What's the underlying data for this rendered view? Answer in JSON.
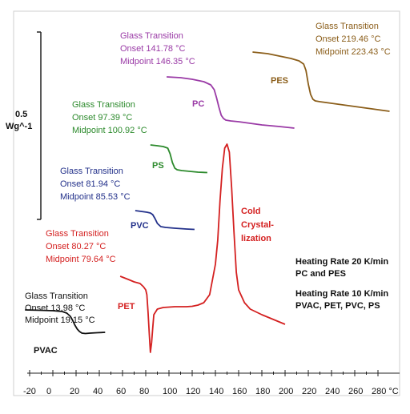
{
  "chart_data": {
    "type": "line",
    "title": "",
    "xlabel": "°C",
    "ylabel": "",
    "xlim": [
      -25,
      300
    ],
    "x_ticks": [
      "-20",
      "0",
      "20",
      "40",
      "60",
      "80",
      "100",
      "120",
      "140",
      "160",
      "180",
      "200",
      "220",
      "240",
      "260",
      "280 °C"
    ],
    "scale_bar": {
      "value": "0.5",
      "unit": "Wg^-1"
    },
    "series": [
      {
        "name": "PVAC",
        "color": "#111111",
        "x": [
          -24,
          -10,
          0,
          8,
          12,
          15,
          17,
          19,
          21,
          23,
          25,
          28,
          32,
          38,
          45
        ],
        "y": [
          387,
          387.5,
          388,
          389,
          391,
          395,
          400,
          406,
          411,
          414,
          416,
          416.5,
          416,
          415.5,
          415
        ],
        "annotation": {
          "title": "Glass Transition",
          "onset": "Onset   13.98 °C",
          "midpoint": "Midpoint 19.15 °C"
        }
      },
      {
        "name": "PET",
        "color": "#d42020",
        "x": [
          58,
          65,
          70,
          75,
          78,
          80,
          81,
          82,
          83,
          84,
          85,
          86,
          87,
          90,
          95,
          100,
          105,
          110,
          115,
          120,
          125,
          130,
          135,
          140,
          142,
          144,
          146,
          148,
          150,
          152,
          154,
          156,
          158,
          160,
          165,
          170,
          180,
          190,
          200
        ],
        "y": [
          345,
          349,
          352,
          354,
          358,
          362,
          368,
          390,
          415,
          440,
          428,
          410,
          393,
          386,
          384,
          383.5,
          383,
          383,
          383,
          382.5,
          381,
          378,
          368,
          330,
          300,
          250,
          210,
          185,
          180,
          190,
          235,
          290,
          340,
          362,
          378,
          386,
          393,
          399,
          405
        ],
        "annotation": {
          "title": "Glass Transition",
          "onset": "Onset   80.27 °C",
          "midpoint": "Midpoint 79.64 °C"
        }
      },
      {
        "name": "PVC",
        "color": "#22308a",
        "x": [
          71,
          76,
          81,
          84,
          86,
          88,
          90,
          93,
          97,
          105,
          115,
          122
        ],
        "y": [
          263,
          264,
          265,
          266,
          268,
          273,
          279,
          283,
          284,
          285,
          286,
          286.5
        ],
        "annotation": {
          "title": "Glass Transition",
          "onset": "Onset   81.94 °C",
          "midpoint": "Midpoint 85.53 °C"
        }
      },
      {
        "name": "PS",
        "color": "#2c8a2c",
        "x": [
          84,
          90,
          95,
          99,
          101,
          103,
          105,
          107,
          111,
          118,
          125,
          133
        ],
        "y": [
          181,
          182,
          183,
          185,
          192,
          203,
          210,
          212,
          213,
          214,
          215,
          215.5
        ],
        "annotation": {
          "title": "Glass Transition",
          "onset": "Onset   97.39 °C",
          "midpoint": "Midpoint 100.92 °C"
        }
      },
      {
        "name": "PC",
        "color": "#9a3aa6",
        "x": [
          98,
          110,
          120,
          130,
          136,
          139,
          141,
          143,
          145,
          147,
          149,
          153,
          160,
          170,
          180,
          195,
          208
        ],
        "y": [
          96,
          97,
          99,
          102,
          106,
          112,
          122,
          134,
          144,
          148,
          150,
          151,
          152,
          154,
          156,
          158,
          160
        ],
        "annotation": {
          "title": "Glass Transition",
          "onset": "Onset   141.78 °C",
          "midpoint": "Midpoint 146.35 °C"
        }
      },
      {
        "name": "PES",
        "color": "#8b5e1a",
        "x": [
          172,
          185,
          195,
          205,
          212,
          216,
          218,
          220,
          222,
          224,
          226,
          230,
          240,
          250,
          260,
          275,
          290
        ],
        "y": [
          65,
          67,
          70,
          73,
          76,
          80,
          88,
          105,
          118,
          124,
          126,
          127,
          129,
          131,
          133,
          136,
          139
        ],
        "annotation": {
          "title": "Glass Transition",
          "onset": "Onset   219.46 °C",
          "midpoint": "Midpoint 223.43 °C"
        }
      }
    ],
    "text_annotations": {
      "cold_crystallization": [
        "Cold",
        "Crystal-",
        "lization"
      ],
      "heating_rate_1": [
        "Heating Rate 20 K/min",
        "PC and PES"
      ],
      "heating_rate_2": [
        "Heating Rate 10 K/min",
        "PVAC, PET, PVC, PS"
      ]
    }
  }
}
